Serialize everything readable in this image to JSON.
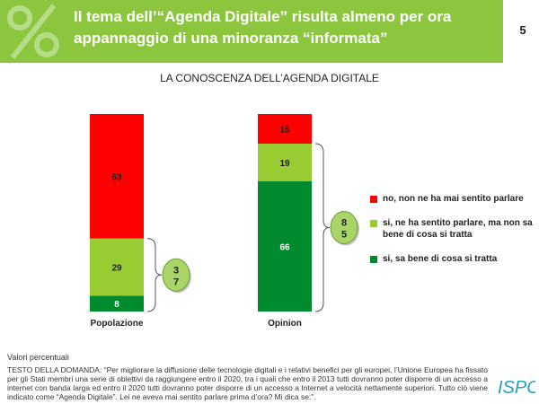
{
  "header": {
    "title": "Il tema dell’“Agenda Digitale” risulta almeno per ora appannaggio di una minoranza “informata”",
    "page_number": "5"
  },
  "colors": {
    "header_bg": "#8cc63f",
    "red": "#ff0000",
    "light_green": "#99cc33",
    "dark_green": "#008a2e",
    "badge_bg": "#a8d468"
  },
  "chart_data": {
    "type": "bar",
    "stacked": true,
    "title": "LA CONOSCENZA DELL’AGENDA DIGITALE",
    "categories": [
      "Popolazione",
      "Opinion"
    ],
    "series": [
      {
        "name": "si, sa bene di cosa si tratta",
        "color": "#008a2e",
        "values": [
          8,
          66
        ]
      },
      {
        "name": "si, ne ha sentito parlare, ma non sa bene di cosa si tratta",
        "color": "#99cc33",
        "values": [
          29,
          19
        ]
      },
      {
        "name": "no, non ne ha mai sentito parlare",
        "color": "#ff0000",
        "values": [
          63,
          15
        ]
      }
    ],
    "totals": [
      {
        "category": "Popolazione",
        "value": "37",
        "digits": [
          "3",
          "7"
        ]
      },
      {
        "category": "Opinion",
        "value": "85",
        "digits": [
          "8",
          "5"
        ]
      }
    ],
    "ylim": [
      0,
      100
    ],
    "legend_position": "right"
  },
  "legend": [
    {
      "label": "no, non ne ha mai sentito parlare",
      "color": "#ff0000"
    },
    {
      "label": "si, ne ha sentito parlare, ma non sa bene di cosa si tratta",
      "color": "#99cc33"
    },
    {
      "label": "si, sa bene di cosa si tratta",
      "color": "#008a2e"
    }
  ],
  "footer": {
    "note": "Valori percentuali",
    "question": "TESTO DELLA DOMANDA: “Per migliorare la diffusione delle tecnologie digitali e i relativi benefici per gli europei, l’Unione Europea ha fissato per gli Stati membri una serie di obiettivi da raggiungere entro il 2020, tra i quali che entro il 2013 tutti dovranno poter disporre di un accesso a internet con banda larga ed entro il 2020 tutti dovranno poter disporre di un accesso a Internet a velocità nettamente superiori. Tutto ciò viene indicato come “Agenda Digitale”. Lei ne aveva mai sentito parlare prima d’ora? Mi dica se:”.",
    "logo_text": "ISPO"
  }
}
